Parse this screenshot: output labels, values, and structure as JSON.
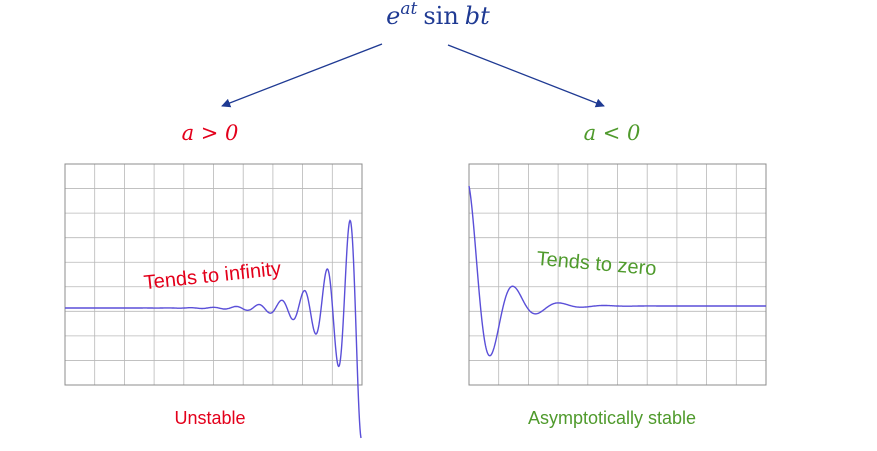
{
  "formula": {
    "base": "e",
    "exponent": "at",
    "func": "sin",
    "arg": "bt"
  },
  "cases": {
    "left": {
      "condition": "a > 0",
      "annotation": "Tends to infinity",
      "caption": "Unstable"
    },
    "right": {
      "condition": "a < 0",
      "annotation": "Tends to zero",
      "caption": "Asymptotically stable"
    }
  },
  "colors": {
    "formula": "#1f3a93",
    "arrow": "#1f3a93",
    "unstable": "#e3001b",
    "stable": "#4f9a2c",
    "curve": "#5a4fd8",
    "grid": "#b8b8b8",
    "frame": "#8c8c8c"
  },
  "chart_data": [
    {
      "type": "line",
      "title": "",
      "xlabel": "",
      "ylabel": "",
      "grid": true,
      "function": "e^(at) sin(bt)",
      "a_sign": "positive"
    },
    {
      "type": "line",
      "title": "",
      "xlabel": "",
      "ylabel": "",
      "grid": true,
      "function": "e^(at) sin(bt)",
      "a_sign": "negative"
    }
  ]
}
